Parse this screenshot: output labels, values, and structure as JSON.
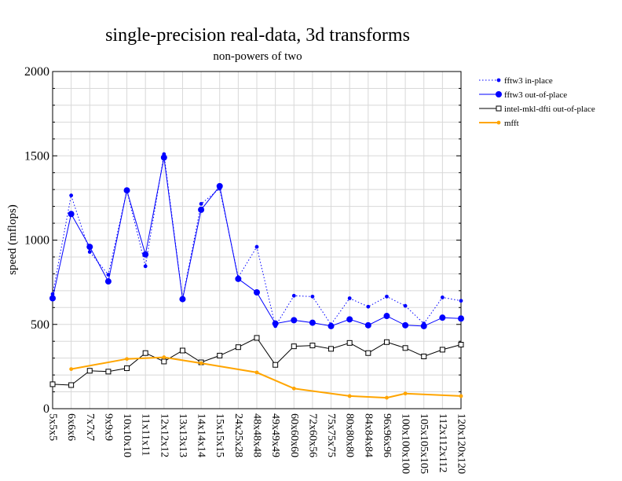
{
  "chart_data": {
    "type": "line",
    "title": "single-precision real-data, 3d transforms",
    "subtitle": "non-powers of two",
    "xlabel": "",
    "ylabel": "speed (mflops)",
    "ylim": [
      0,
      2000
    ],
    "yticks": [
      0,
      500,
      1000,
      1500,
      2000
    ],
    "grid": true,
    "legend_position": "right",
    "categories": [
      "5x5x5",
      "6x6x6",
      "7x7x7",
      "9x9x9",
      "10x10x10",
      "11x11x11",
      "12x12x12",
      "13x13x13",
      "14x14x14",
      "15x15x15",
      "24x25x28",
      "48x48x48",
      "49x49x49",
      "60x60x60",
      "72x60x56",
      "75x75x75",
      "80x80x80",
      "84x84x84",
      "96x96x96",
      "100x100x100",
      "105x105x105",
      "112x112x112",
      "120x120x120"
    ],
    "series": [
      {
        "name": "fftw3 in-place",
        "color": "#0000ff",
        "style": "dotted",
        "marker": "small-dot",
        "values": [
          680,
          1265,
          930,
          795,
          1295,
          845,
          1510,
          655,
          1215,
          1305,
          780,
          960,
          490,
          670,
          665,
          500,
          655,
          605,
          665,
          610,
          505,
          660,
          640
        ]
      },
      {
        "name": "fftw3 out-of-place",
        "color": "#0000ff",
        "style": "solid",
        "marker": "large-dot",
        "values": [
          655,
          1155,
          960,
          755,
          1295,
          915,
          1490,
          650,
          1180,
          1320,
          770,
          690,
          505,
          525,
          510,
          490,
          530,
          495,
          550,
          495,
          490,
          540,
          535
        ]
      },
      {
        "name": "intel-mkl-dfti out-of-place",
        "color": "#000000",
        "style": "solid",
        "marker": "open-square",
        "values": [
          145,
          140,
          225,
          220,
          240,
          330,
          280,
          345,
          275,
          315,
          365,
          420,
          260,
          370,
          375,
          355,
          390,
          330,
          395,
          360,
          310,
          350,
          380
        ]
      },
      {
        "name": "mfft",
        "color": "#ffa500",
        "style": "solid",
        "marker": "small-dot",
        "values": [
          null,
          235,
          null,
          null,
          295,
          null,
          305,
          null,
          270,
          null,
          null,
          215,
          null,
          120,
          null,
          null,
          75,
          null,
          65,
          90,
          null,
          null,
          75
        ]
      }
    ]
  }
}
